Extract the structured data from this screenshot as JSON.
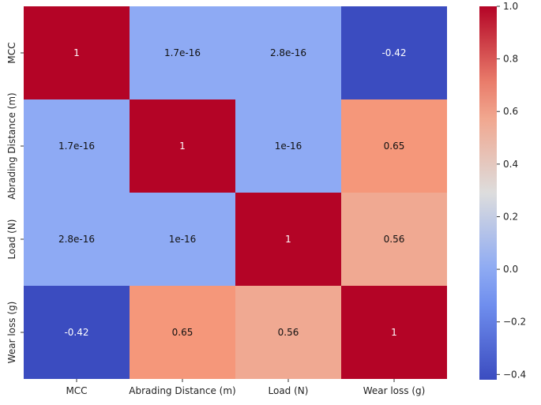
{
  "chart_data": {
    "type": "heatmap",
    "title": "",
    "xlabel": "",
    "ylabel": "",
    "x_categories": [
      "MCC",
      "Abrading Distance (m)",
      "Load (N)",
      "Wear loss (g)"
    ],
    "y_categories": [
      "MCC",
      "Abrading Distance (m)",
      "Load (N)",
      "Wear loss (g)"
    ],
    "values": [
      [
        1,
        1.7e-16,
        2.8e-16,
        -0.42
      ],
      [
        1.7e-16,
        1,
        1e-16,
        0.65
      ],
      [
        2.8e-16,
        1e-16,
        1,
        0.56
      ],
      [
        -0.42,
        0.65,
        0.56,
        1
      ]
    ],
    "annotations": [
      [
        "1",
        "1.7e-16",
        "2.8e-16",
        "-0.42"
      ],
      [
        "1.7e-16",
        "1",
        "1e-16",
        "0.65"
      ],
      [
        "2.8e-16",
        "1e-16",
        "1",
        "0.56"
      ],
      [
        "-0.42",
        "0.65",
        "0.56",
        "1"
      ]
    ],
    "colormap": "coolwarm",
    "vmin": -0.42,
    "vmax": 1.0,
    "colorbar_ticks": [
      1.0,
      0.8,
      0.6,
      0.4,
      0.2,
      0.0,
      -0.2,
      -0.4
    ],
    "colorbar_tick_labels": [
      "1.0",
      "0.8",
      "0.6",
      "0.4",
      "0.2",
      "0.0",
      "−0.2",
      "−0.4"
    ],
    "grid": false,
    "legend": "colorbar-right"
  }
}
